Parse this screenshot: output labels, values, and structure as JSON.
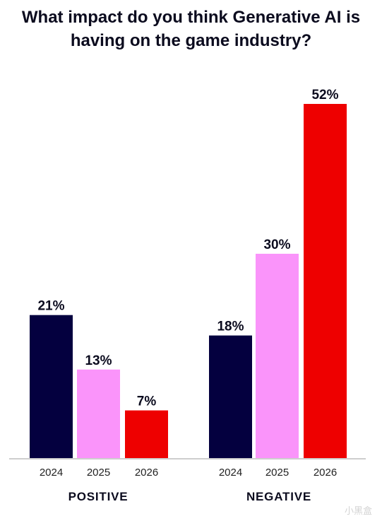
{
  "title_line1": "What impact do you think Generative AI is",
  "title_line2": "having on the game industry?",
  "chart_data": {
    "type": "bar",
    "title": "What impact do you think Generative AI is having on the game industry?",
    "groups": [
      "POSITIVE",
      "NEGATIVE"
    ],
    "categories": [
      "2024",
      "2025",
      "2026"
    ],
    "series": [
      {
        "group": "POSITIVE",
        "values": [
          21,
          13,
          7
        ]
      },
      {
        "group": "NEGATIVE",
        "values": [
          18,
          30,
          52
        ]
      }
    ],
    "value_format": "%",
    "year_colors": {
      "2024": "#04003f",
      "2025": "#fa94fa",
      "2026": "#ee0000"
    },
    "ylim": [
      0,
      52
    ],
    "grid": false,
    "legend": "none"
  },
  "watermark": "小黑盒"
}
